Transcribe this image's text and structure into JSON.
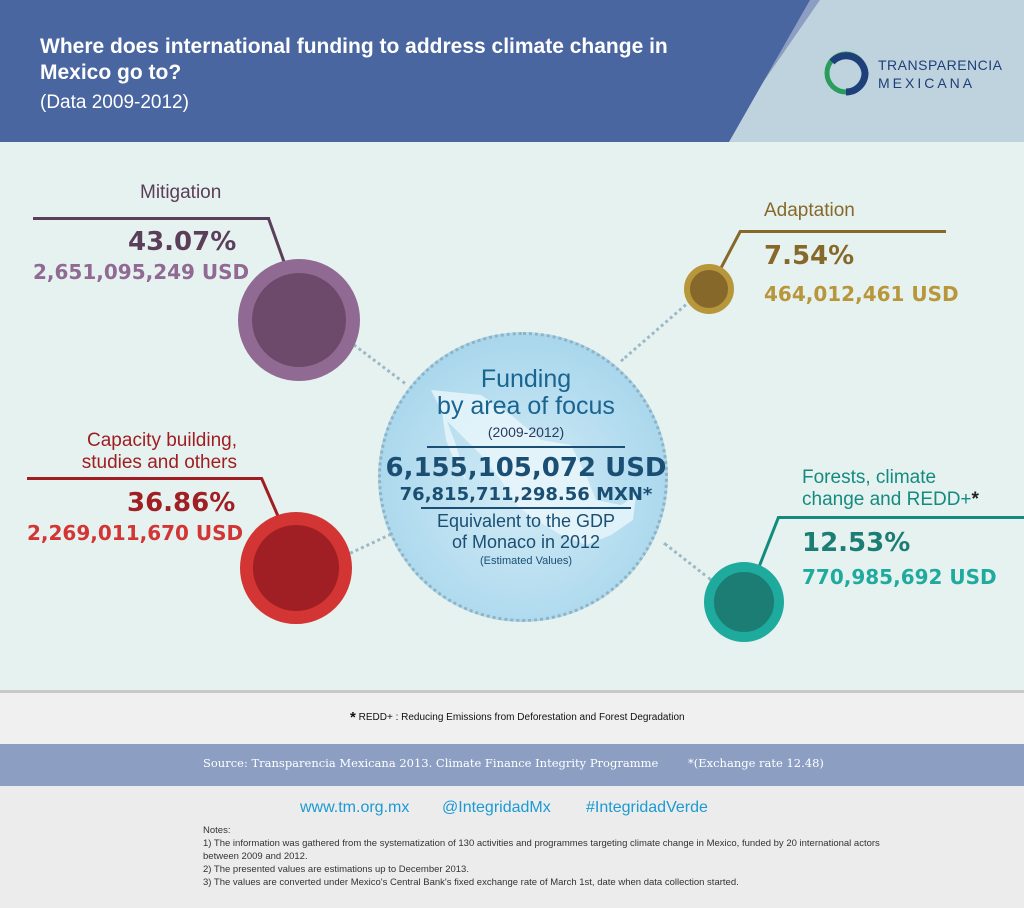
{
  "header": {
    "title": "Where does international funding to address climate change in Mexico go to?",
    "subtitle": "(Data 2009-2012)",
    "logo_line1": "TRANSPARENCIA",
    "logo_line2": "MEXICANA"
  },
  "center": {
    "title_line1": "Funding",
    "title_line2": "by area of focus",
    "period": "(2009-2012)",
    "total_usd": "6,155,105,072 USD",
    "total_mxn": "76,815,711,298.56 MXN*",
    "gdp_line1": "Equivalent to the GDP",
    "gdp_line2": "of Monaco in 2012",
    "estimated": "(Estimated Values)"
  },
  "areas": {
    "mitigation": {
      "label": "Mitigation",
      "percent": "43.07%",
      "usd": "2,651,095,249 USD",
      "color": "#6d4a6b",
      "ring": "#906a93"
    },
    "adaptation": {
      "label": "Adaptation",
      "percent": "7.54%",
      "usd": "464,012,461 USD",
      "color": "#86692a",
      "ring": "#b8963c"
    },
    "capacity": {
      "label_line1": "Capacity building,",
      "label_line2": "studies and others",
      "percent": "36.86%",
      "usd": "2,269,011,670 USD",
      "color": "#9f1f24",
      "ring": "#d33434"
    },
    "forests": {
      "label_line1": "Forests, climate",
      "label_line2": "change and REDD+",
      "asterisk": "*",
      "percent": "12.53%",
      "usd": "770,985,692 USD",
      "color": "#1b7d74",
      "ring": "#1faa9e"
    }
  },
  "footer": {
    "redd_asterisk": "*",
    "redd_note": "REDD+ : Reducing Emissions from Deforestation and Forest Degradation",
    "source": "Source:   Transparencia Mexicana 2013. Climate Finance Integrity Programme",
    "exchange": "*(Exchange rate 12.48)",
    "website": "www.tm.org.mx",
    "handle": "@IntegridadMx",
    "hashtag": "#IntegridadVerde",
    "notes_title": "Notes:",
    "note1": "1) The information was gathered from the systematization of 130 activities and programmes targeting climate change in Mexico, funded by 20 international actors between 2009 and 2012.",
    "note2": "2) The presented values are estimations up to December 2013.",
    "note3": "3) The values are converted under Mexico's Central Bank's fixed exchange rate of March 1st, date when data collection started."
  }
}
